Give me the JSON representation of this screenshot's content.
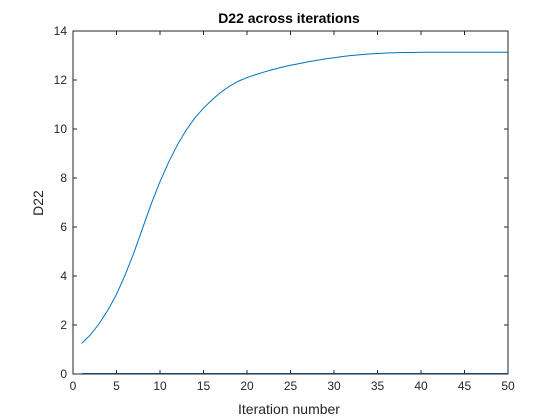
{
  "chart_data": {
    "type": "line",
    "title": "D22 across iterations",
    "xlabel": "Iteration number",
    "ylabel": "D22",
    "xlim": [
      0,
      50
    ],
    "ylim": [
      0,
      14
    ],
    "xticks": [
      "0",
      "5",
      "10",
      "15",
      "20",
      "25",
      "30",
      "35",
      "40",
      "45",
      "50"
    ],
    "yticks": [
      "0",
      "2",
      "4",
      "6",
      "8",
      "10",
      "12",
      "14"
    ],
    "grid": false,
    "legend": "none",
    "line_color": "#0072BD",
    "axis_color": "#262626",
    "series": [
      {
        "x": [
          1,
          2,
          3,
          4,
          5,
          6,
          7,
          8,
          9,
          10,
          11,
          12,
          13,
          14,
          15,
          16,
          17,
          18,
          19,
          20,
          21,
          22,
          23,
          24,
          25,
          26,
          27,
          28,
          29,
          30,
          31,
          32,
          33,
          34,
          35,
          36,
          37,
          38,
          39,
          40,
          41,
          42,
          43,
          44,
          45,
          46,
          47,
          48,
          49,
          50
        ],
        "values": [
          1.25,
          1.6,
          2.05,
          2.6,
          3.25,
          4.05,
          4.95,
          5.95,
          6.95,
          7.85,
          8.65,
          9.35,
          9.95,
          10.45,
          10.85,
          11.2,
          11.5,
          11.75,
          11.95,
          12.1,
          12.22,
          12.33,
          12.43,
          12.52,
          12.6,
          12.67,
          12.74,
          12.8,
          12.86,
          12.91,
          12.96,
          13.0,
          13.03,
          13.06,
          13.08,
          13.1,
          13.11,
          13.12,
          13.12,
          13.13,
          13.13,
          13.13,
          13.13,
          13.13,
          13.13,
          13.13,
          13.13,
          13.13,
          13.13,
          13.13
        ]
      },
      {
        "x": [
          1,
          2,
          3,
          4,
          5,
          6,
          7,
          8,
          9,
          10,
          11,
          12,
          13,
          14,
          15,
          16,
          17,
          18,
          19,
          20,
          21,
          22,
          23,
          24,
          25,
          26,
          27,
          28,
          29,
          30,
          31,
          32,
          33,
          34,
          35,
          36,
          37,
          38,
          39,
          40,
          41,
          42,
          43,
          44,
          45,
          46,
          47,
          48,
          49,
          50
        ],
        "values": [
          0.02,
          0.02,
          0.02,
          0.02,
          0.02,
          0.02,
          0.02,
          0.02,
          0.02,
          0.02,
          0.02,
          0.02,
          0.02,
          0.02,
          0.02,
          0.02,
          0.02,
          0.02,
          0.02,
          0.02,
          0.02,
          0.02,
          0.02,
          0.02,
          0.02,
          0.02,
          0.02,
          0.02,
          0.02,
          0.02,
          0.02,
          0.02,
          0.02,
          0.02,
          0.02,
          0.02,
          0.02,
          0.02,
          0.02,
          0.02,
          0.02,
          0.02,
          0.02,
          0.02,
          0.02,
          0.02,
          0.02,
          0.02,
          0.02,
          0.02
        ]
      }
    ]
  }
}
